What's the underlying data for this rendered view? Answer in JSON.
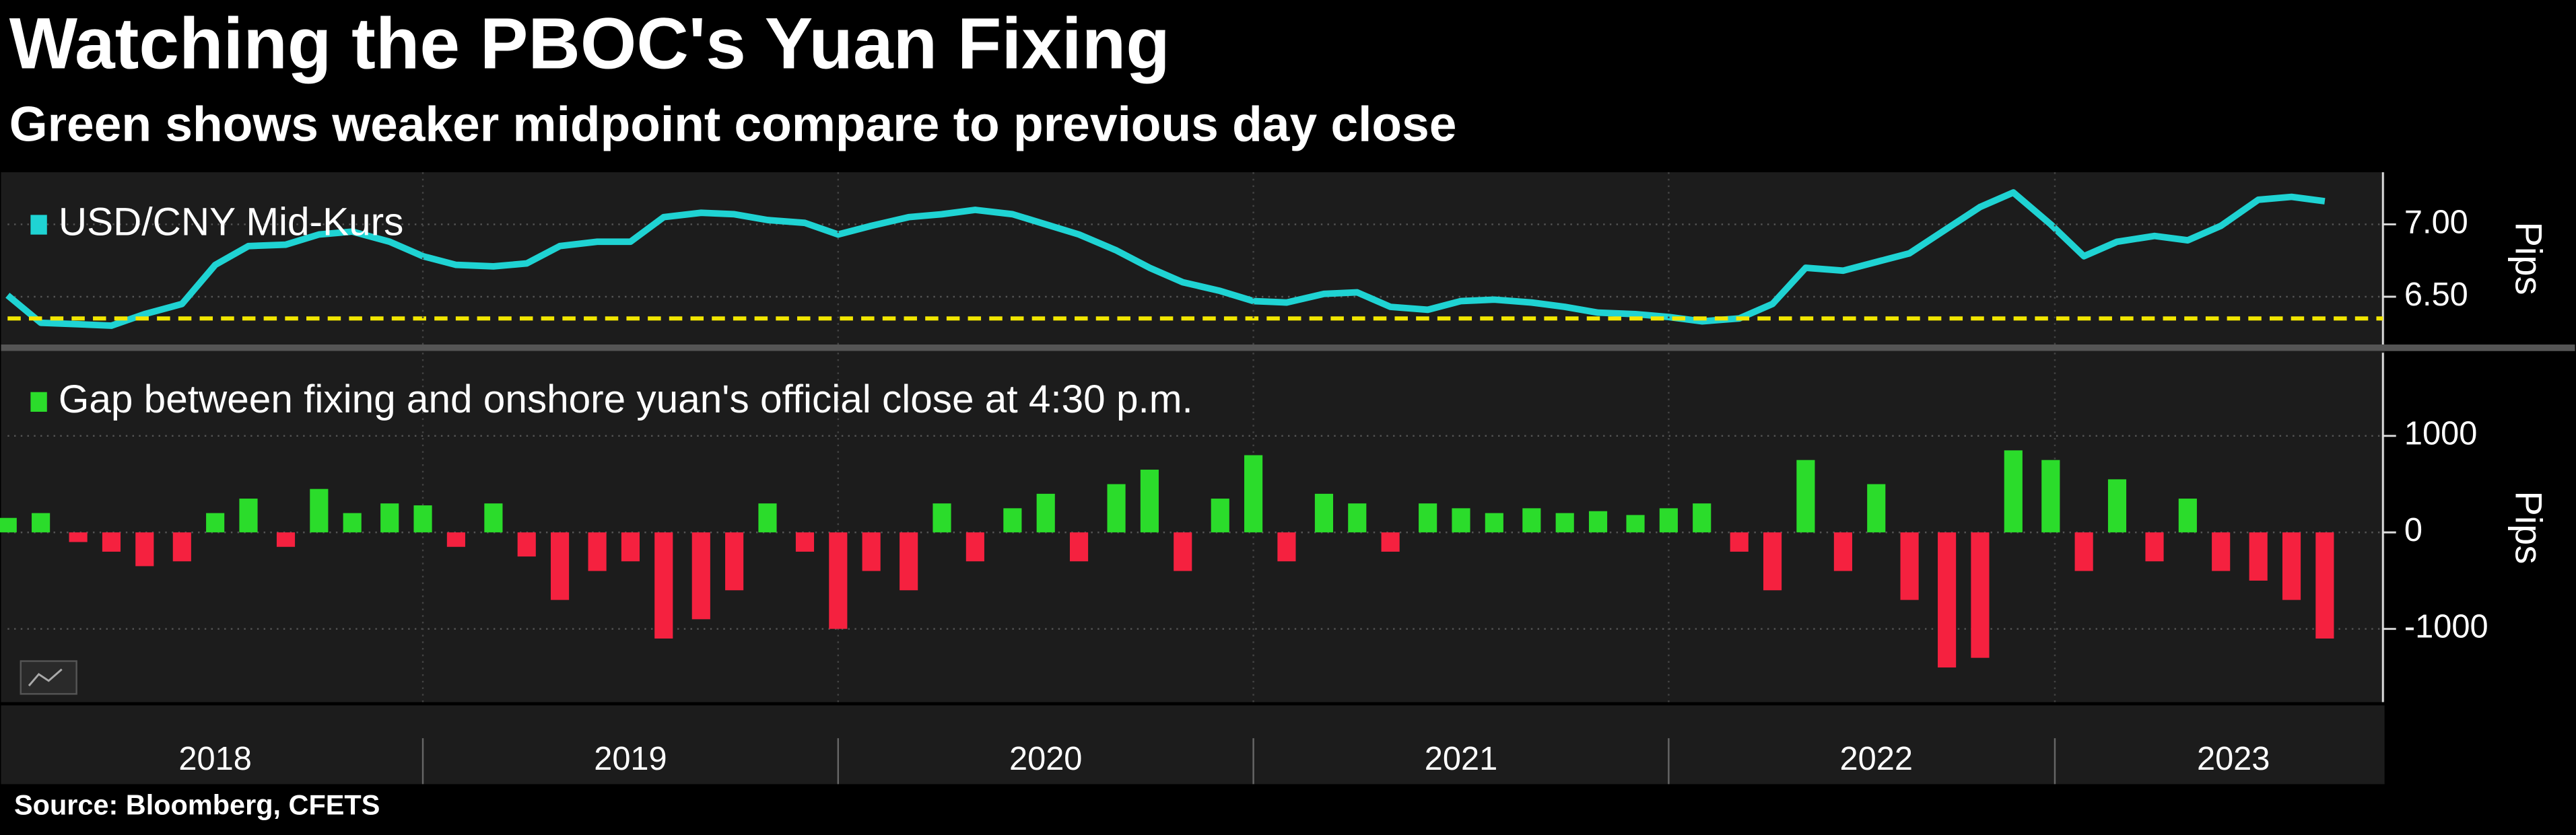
{
  "chart_data": [
    {
      "type": "line",
      "title": "Watching the PBOC's Yuan Fixing",
      "subtitle": "Green shows weaker midpoint compare to previous day close",
      "x": [
        2018.0,
        2018.08,
        2018.17,
        2018.25,
        2018.33,
        2018.42,
        2018.5,
        2018.58,
        2018.67,
        2018.75,
        2018.83,
        2018.92,
        2019.0,
        2019.08,
        2019.17,
        2019.25,
        2019.33,
        2019.42,
        2019.5,
        2019.58,
        2019.67,
        2019.75,
        2019.83,
        2019.92,
        2020.0,
        2020.08,
        2020.17,
        2020.25,
        2020.33,
        2020.42,
        2020.5,
        2020.58,
        2020.67,
        2020.75,
        2020.83,
        2020.92,
        2021.0,
        2021.08,
        2021.17,
        2021.25,
        2021.33,
        2021.42,
        2021.5,
        2021.58,
        2021.67,
        2021.75,
        2021.83,
        2021.92,
        2022.0,
        2022.08,
        2022.17,
        2022.25,
        2022.33,
        2022.42,
        2022.5,
        2022.58,
        2022.67,
        2022.75,
        2022.83,
        2022.92,
        2023.0,
        2023.08,
        2023.17,
        2023.25,
        2023.33,
        2023.42,
        2023.5,
        2023.58
      ],
      "series": [
        {
          "name": "USD/CNY Mid-Kurs",
          "color": "#1fd3d3",
          "values": [
            6.51,
            6.32,
            6.31,
            6.3,
            6.38,
            6.45,
            6.72,
            6.85,
            6.86,
            6.93,
            6.95,
            6.88,
            6.78,
            6.72,
            6.71,
            6.73,
            6.85,
            6.88,
            6.88,
            7.05,
            7.08,
            7.07,
            7.03,
            7.01,
            6.93,
            6.99,
            7.05,
            7.07,
            7.1,
            7.07,
            7.0,
            6.93,
            6.82,
            6.7,
            6.6,
            6.54,
            6.47,
            6.46,
            6.52,
            6.53,
            6.43,
            6.41,
            6.47,
            6.48,
            6.46,
            6.43,
            6.39,
            6.38,
            6.36,
            6.33,
            6.35,
            6.45,
            6.7,
            6.68,
            6.74,
            6.8,
            6.97,
            7.12,
            7.22,
            7.0,
            6.78,
            6.88,
            6.92,
            6.89,
            6.99,
            7.17,
            7.19,
            7.16
          ]
        }
      ],
      "xlim": [
        2018.0,
        2023.72
      ],
      "ylim": [
        6.17,
        7.36
      ],
      "yticks": [
        {
          "value": 6.5,
          "label": "6.50"
        },
        {
          "value": 7,
          "label": "7.00"
        }
      ],
      "y_label": "Pips",
      "hline": 6.35,
      "hline_color": "#f2e600"
    },
    {
      "type": "bar",
      "legend": "Gap between fixing and onshore yuan's official close at 4:30 p.m.",
      "legend_color": "#2bdc2b",
      "x": [
        2018.0,
        2018.08,
        2018.17,
        2018.25,
        2018.33,
        2018.42,
        2018.5,
        2018.58,
        2018.67,
        2018.75,
        2018.83,
        2018.92,
        2019.0,
        2019.08,
        2019.17,
        2019.25,
        2019.33,
        2019.42,
        2019.5,
        2019.58,
        2019.67,
        2019.75,
        2019.83,
        2019.92,
        2020.0,
        2020.08,
        2020.17,
        2020.25,
        2020.33,
        2020.42,
        2020.5,
        2020.58,
        2020.67,
        2020.75,
        2020.83,
        2020.92,
        2021.0,
        2021.08,
        2021.17,
        2021.25,
        2021.33,
        2021.42,
        2021.5,
        2021.58,
        2021.67,
        2021.75,
        2021.83,
        2021.92,
        2022.0,
        2022.08,
        2022.17,
        2022.25,
        2022.33,
        2022.42,
        2022.5,
        2022.58,
        2022.67,
        2022.75,
        2022.83,
        2022.92,
        2023.0,
        2023.08,
        2023.17,
        2023.25,
        2023.33,
        2023.42,
        2023.5,
        2023.58
      ],
      "values": [
        150,
        200,
        -100,
        -200,
        -350,
        -300,
        200,
        350,
        -150,
        450,
        200,
        300,
        280,
        -150,
        300,
        -250,
        -700,
        -400,
        -300,
        -1100,
        -900,
        -600,
        300,
        -200,
        -1000,
        -400,
        -600,
        300,
        -300,
        250,
        400,
        -300,
        500,
        650,
        -400,
        350,
        800,
        -300,
        400,
        300,
        -200,
        300,
        250,
        200,
        250,
        200,
        220,
        180,
        250,
        300,
        -200,
        -600,
        750,
        -400,
        500,
        -700,
        -1400,
        -1300,
        850,
        750,
        -400,
        550,
        -300,
        350,
        -400,
        -500,
        -700,
        -1100
      ],
      "positive_color": "#2bdc2b",
      "negative_color": "#f5213f",
      "xlim": [
        2018.0,
        2023.72
      ],
      "xticks": [
        {
          "value": 2018.5,
          "label": "2018"
        },
        {
          "value": 2019.5,
          "label": "2019"
        },
        {
          "value": 2020.5,
          "label": "2020"
        },
        {
          "value": 2021.5,
          "label": "2021"
        },
        {
          "value": 2022.5,
          "label": "2022"
        },
        {
          "value": 2023.36,
          "label": "2023"
        }
      ],
      "ylim": [
        -1759,
        1862
      ],
      "yticks": [
        1000,
        0,
        -1000
      ],
      "y_label": "Pips",
      "source": "Source: Bloomberg, CFETS"
    }
  ]
}
